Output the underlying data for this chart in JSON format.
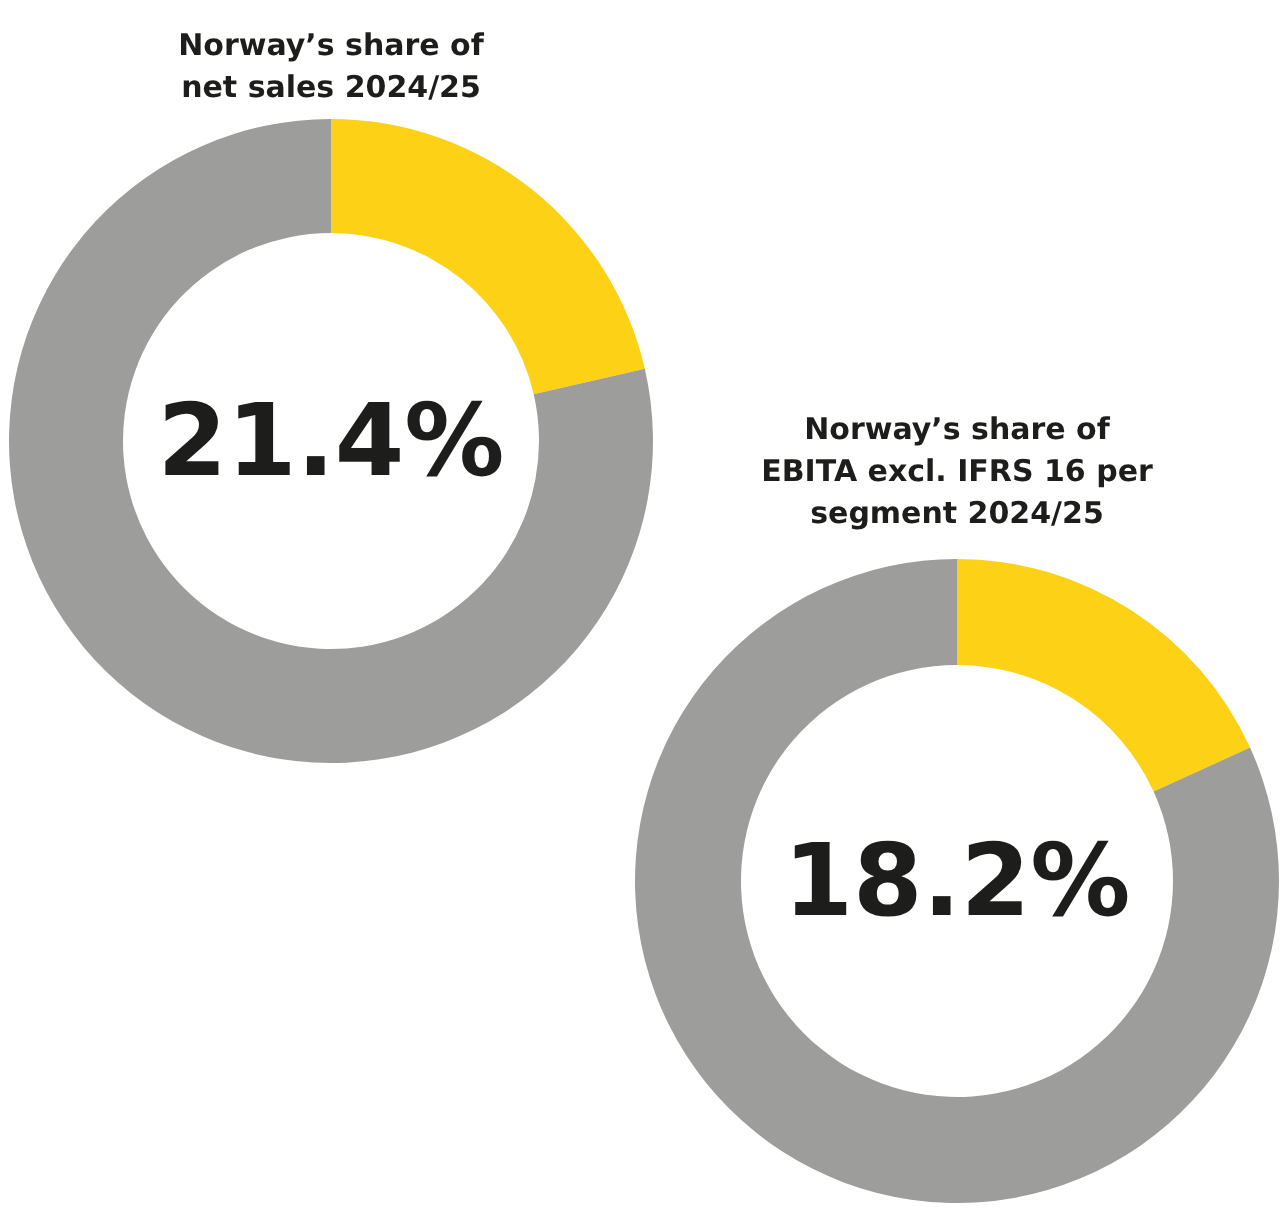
{
  "chart_data": [
    {
      "type": "donut",
      "title": "Norway’s share of\nnet sales 2024/25",
      "categories": [
        null,
        null
      ],
      "values": [
        21.4,
        78.6
      ],
      "colors": [
        "#fcd116",
        "#9d9d9c"
      ],
      "annotations": [
        "21.4%"
      ]
    },
    {
      "type": "donut",
      "title": "Norway’s share of\nEBITA excl. IFRS 16 per\nsegment 2024/25",
      "categories": [
        null,
        null
      ],
      "values": [
        18.2,
        81.8
      ],
      "colors": [
        "#fcd116",
        "#9d9d9c"
      ],
      "annotations": [
        "18.2%"
      ]
    }
  ]
}
